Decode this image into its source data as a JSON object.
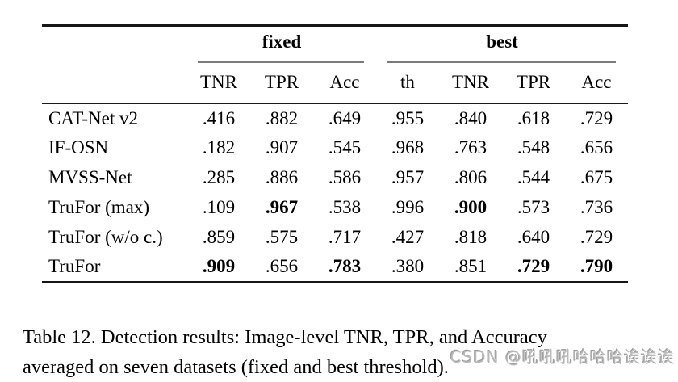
{
  "table": {
    "group_headers": [
      {
        "label": "fixed"
      },
      {
        "label": "best"
      }
    ],
    "columns": [
      "TNR",
      "TPR",
      "Acc",
      "th",
      "TNR",
      "TPR",
      "Acc"
    ],
    "rows": [
      {
        "label": "CAT-Net v2",
        "values": [
          ".416",
          ".882",
          ".649",
          ".955",
          ".840",
          ".618",
          ".729"
        ],
        "bold": [
          false,
          false,
          false,
          false,
          false,
          false,
          false
        ]
      },
      {
        "label": "IF-OSN",
        "values": [
          ".182",
          ".907",
          ".545",
          ".968",
          ".763",
          ".548",
          ".656"
        ],
        "bold": [
          false,
          false,
          false,
          false,
          false,
          false,
          false
        ]
      },
      {
        "label": "MVSS-Net",
        "values": [
          ".285",
          ".886",
          ".586",
          ".957",
          ".806",
          ".544",
          ".675"
        ],
        "bold": [
          false,
          false,
          false,
          false,
          false,
          false,
          false
        ]
      },
      {
        "label": "TruFor (max)",
        "values": [
          ".109",
          ".967",
          ".538",
          ".996",
          ".900",
          ".573",
          ".736"
        ],
        "bold": [
          false,
          true,
          false,
          false,
          true,
          false,
          false
        ]
      },
      {
        "label": "TruFor (w/o c.)",
        "values": [
          ".859",
          ".575",
          ".717",
          ".427",
          ".818",
          ".640",
          ".729"
        ],
        "bold": [
          false,
          false,
          false,
          false,
          false,
          false,
          false
        ]
      },
      {
        "label": "TruFor",
        "values": [
          ".909",
          ".656",
          ".783",
          ".380",
          ".851",
          ".729",
          ".790"
        ],
        "bold": [
          true,
          false,
          true,
          false,
          false,
          true,
          true
        ]
      }
    ]
  },
  "caption": {
    "line1": "Table 12. Detection results: Image-level TNR, TPR, and Accuracy",
    "line2": "averaged on seven datasets (fixed and best threshold)."
  },
  "watermark": {
    "text": "CSDN @吼吼吼哈哈哈诶诶诶",
    "color": "#b9b9b9"
  },
  "colors": {
    "rule_heavy": "#161616",
    "rule_light": "#7a7a7a",
    "text": "#000000",
    "background": "#ffffff"
  }
}
